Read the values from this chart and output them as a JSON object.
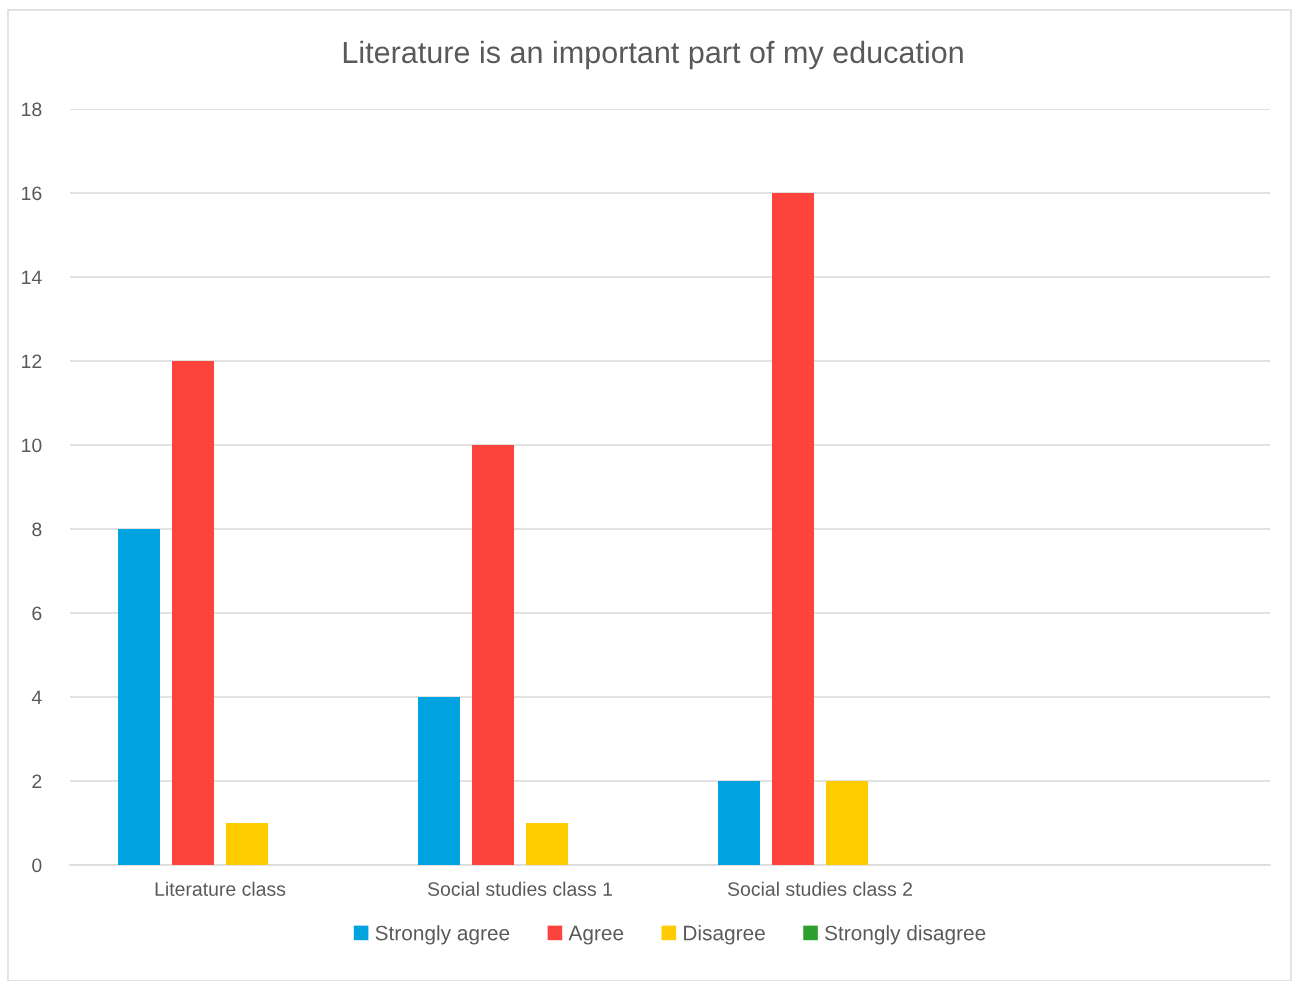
{
  "chart_data": {
    "type": "bar",
    "title": "Literature is an important part of my education",
    "categories": [
      "Literature class",
      "Social studies class 1",
      "Social studies class 2",
      null
    ],
    "series": [
      {
        "name": "Strongly agree",
        "color": "#00a2e0",
        "values": [
          8,
          4,
          2,
          null
        ]
      },
      {
        "name": "Agree",
        "color": "#fc443c",
        "values": [
          12,
          10,
          16,
          null
        ]
      },
      {
        "name": "Disagree",
        "color": "#ffcc00",
        "values": [
          1,
          1,
          2,
          null
        ]
      },
      {
        "name": "Strongly disagree",
        "color": "#2ca02c",
        "values": [
          0,
          0,
          0,
          null
        ]
      }
    ],
    "ylim": [
      0,
      18
    ],
    "yticks": [
      0,
      2,
      4,
      6,
      8,
      10,
      12,
      14,
      16,
      18
    ],
    "grid": "y",
    "legend": "bottom"
  }
}
